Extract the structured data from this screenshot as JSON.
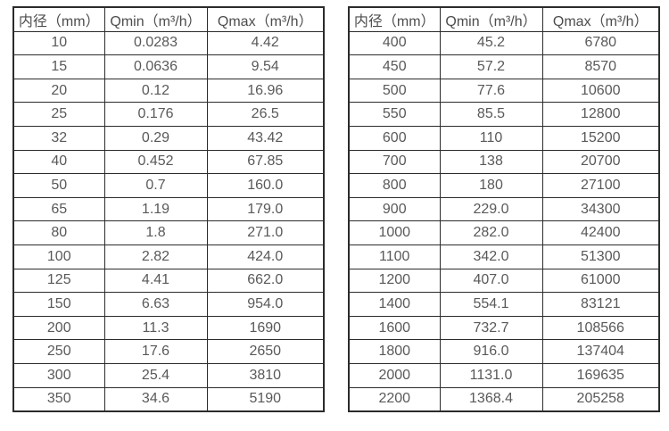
{
  "tables": [
    {
      "name": "small-diameter-table",
      "headers": [
        "内径（mm）",
        "Qmin（m³/h）",
        "Qmax（m³/h）"
      ],
      "rows": [
        [
          "10",
          "0.0283",
          "4.42"
        ],
        [
          "15",
          "0.0636",
          "9.54"
        ],
        [
          "20",
          "0.12",
          "16.96"
        ],
        [
          "25",
          "0.176",
          "26.5"
        ],
        [
          "32",
          "0.29",
          "43.42"
        ],
        [
          "40",
          "0.452",
          "67.85"
        ],
        [
          "50",
          "0.7",
          "160.0"
        ],
        [
          "65",
          "1.19",
          "179.0"
        ],
        [
          "80",
          "1.8",
          "271.0"
        ],
        [
          "100",
          "2.82",
          "424.0"
        ],
        [
          "125",
          "4.41",
          "662.0"
        ],
        [
          "150",
          "6.63",
          "954.0"
        ],
        [
          "200",
          "11.3",
          "1690"
        ],
        [
          "250",
          "17.6",
          "2650"
        ],
        [
          "300",
          "25.4",
          "3810"
        ],
        [
          "350",
          "34.6",
          "5190"
        ]
      ]
    },
    {
      "name": "large-diameter-table",
      "headers": [
        "内径（mm）",
        "Qmin（m³/h）",
        "Qmax（m³/h）"
      ],
      "rows": [
        [
          "400",
          "45.2",
          "6780"
        ],
        [
          "450",
          "57.2",
          "8570"
        ],
        [
          "500",
          "77.6",
          "10600"
        ],
        [
          "550",
          "85.5",
          "12800"
        ],
        [
          "600",
          "110",
          "15200"
        ],
        [
          "700",
          "138",
          "20700"
        ],
        [
          "800",
          "180",
          "27100"
        ],
        [
          "900",
          "229.0",
          "34300"
        ],
        [
          "1000",
          "282.0",
          "42400"
        ],
        [
          "1100",
          "342.0",
          "51300"
        ],
        [
          "1200",
          "407.0",
          "61000"
        ],
        [
          "1400",
          "554.1",
          "83121"
        ],
        [
          "1600",
          "732.7",
          "108566"
        ],
        [
          "1800",
          "916.0",
          "137404"
        ],
        [
          "2000",
          "1131.0",
          "169635"
        ],
        [
          "2200",
          "1368.4",
          "205258"
        ]
      ]
    }
  ],
  "colors": {
    "border": "#2b2b2b",
    "text": "#595959",
    "background": "#ffffff"
  }
}
